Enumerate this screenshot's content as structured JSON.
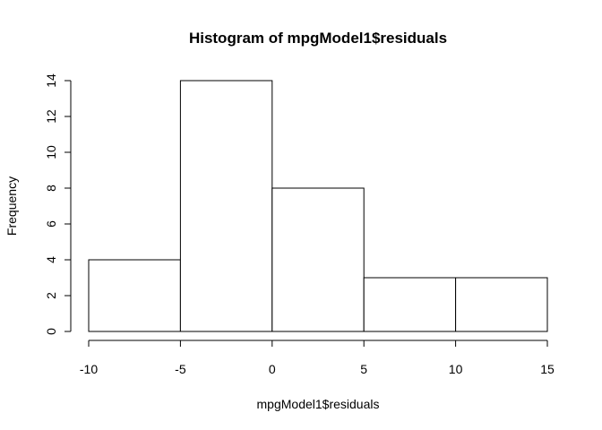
{
  "chart_data": {
    "type": "bar",
    "title": "Histogram of mpgModel1$residuals",
    "xlabel": "mpgModel1$residuals",
    "ylabel": "Frequency",
    "bins": [
      {
        "start": -10,
        "end": -5,
        "count": 4
      },
      {
        "start": -5,
        "end": 0,
        "count": 14
      },
      {
        "start": 0,
        "end": 5,
        "count": 8
      },
      {
        "start": 5,
        "end": 10,
        "count": 3
      },
      {
        "start": 10,
        "end": 15,
        "count": 3
      }
    ],
    "xlim": [
      -10,
      15
    ],
    "ylim": [
      0,
      14
    ],
    "x_ticks": [
      {
        "value": -10,
        "label": "-10"
      },
      {
        "value": -5,
        "label": "-5"
      },
      {
        "value": 0,
        "label": "0"
      },
      {
        "value": 5,
        "label": "5"
      },
      {
        "value": 10,
        "label": "10"
      },
      {
        "value": 15,
        "label": "15"
      }
    ],
    "y_ticks": [
      {
        "value": 0,
        "label": "0"
      },
      {
        "value": 2,
        "label": "2"
      },
      {
        "value": 4,
        "label": "4"
      },
      {
        "value": 6,
        "label": "6"
      },
      {
        "value": 8,
        "label": "8"
      },
      {
        "value": 10,
        "label": "10"
      },
      {
        "value": 12,
        "label": "12"
      },
      {
        "value": 14,
        "label": "14"
      }
    ],
    "grid": false,
    "colors": {
      "bar_fill": "#ffffff",
      "bar_stroke": "#000000",
      "axis": "#000000",
      "background": "#ffffff"
    }
  }
}
